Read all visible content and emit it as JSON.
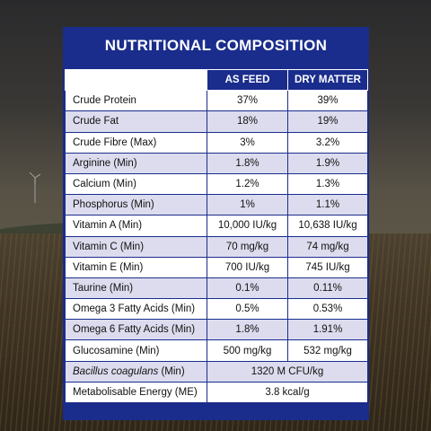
{
  "title": "NUTRITIONAL COMPOSITION",
  "columns": [
    "AS FEED",
    "DRY MATTER"
  ],
  "rows": [
    {
      "label": "Crude Protein",
      "as_feed": "37%",
      "dry_matter": "39%"
    },
    {
      "label": "Crude Fat",
      "as_feed": "18%",
      "dry_matter": "19%"
    },
    {
      "label": "Crude Fibre (Max)",
      "as_feed": "3%",
      "dry_matter": "3.2%"
    },
    {
      "label": "Arginine (Min)",
      "as_feed": "1.8%",
      "dry_matter": "1.9%"
    },
    {
      "label": "Calcium (Min)",
      "as_feed": "1.2%",
      "dry_matter": "1.3%"
    },
    {
      "label": "Phosphorus (Min)",
      "as_feed": "1%",
      "dry_matter": "1.1%"
    },
    {
      "label": "Vitamin A (Min)",
      "as_feed": "10,000 IU/kg",
      "dry_matter": "10,638 IU/kg"
    },
    {
      "label": "Vitamin C (Min)",
      "as_feed": "70 mg/kg",
      "dry_matter": "74 mg/kg"
    },
    {
      "label": "Vitamin E (Min)",
      "as_feed": "700 IU/kg",
      "dry_matter": "745 IU/kg"
    },
    {
      "label": "Taurine (Min)",
      "as_feed": "0.1%",
      "dry_matter": "0.11%"
    },
    {
      "label": "Omega 3 Fatty Acids (Min)",
      "as_feed": "0.5%",
      "dry_matter": "0.53%"
    },
    {
      "label": "Omega 6 Fatty Acids (Min)",
      "as_feed": "1.8%",
      "dry_matter": "1.91%"
    },
    {
      "label": "Glucosamine (Min)",
      "as_feed": "500 mg/kg",
      "dry_matter": "532 mg/kg"
    }
  ],
  "merged_rows": [
    {
      "label_italic": "Bacillus coagulans",
      "label_suffix": " (Min)",
      "value": "1320 M CFU/kg"
    },
    {
      "label": "Metabolisable Energy (ME)",
      "value": "3.8 kcal/g"
    }
  ],
  "colors": {
    "panel": "#1a2d8c",
    "row_alt": "#dcdcee",
    "row": "#ffffff"
  }
}
